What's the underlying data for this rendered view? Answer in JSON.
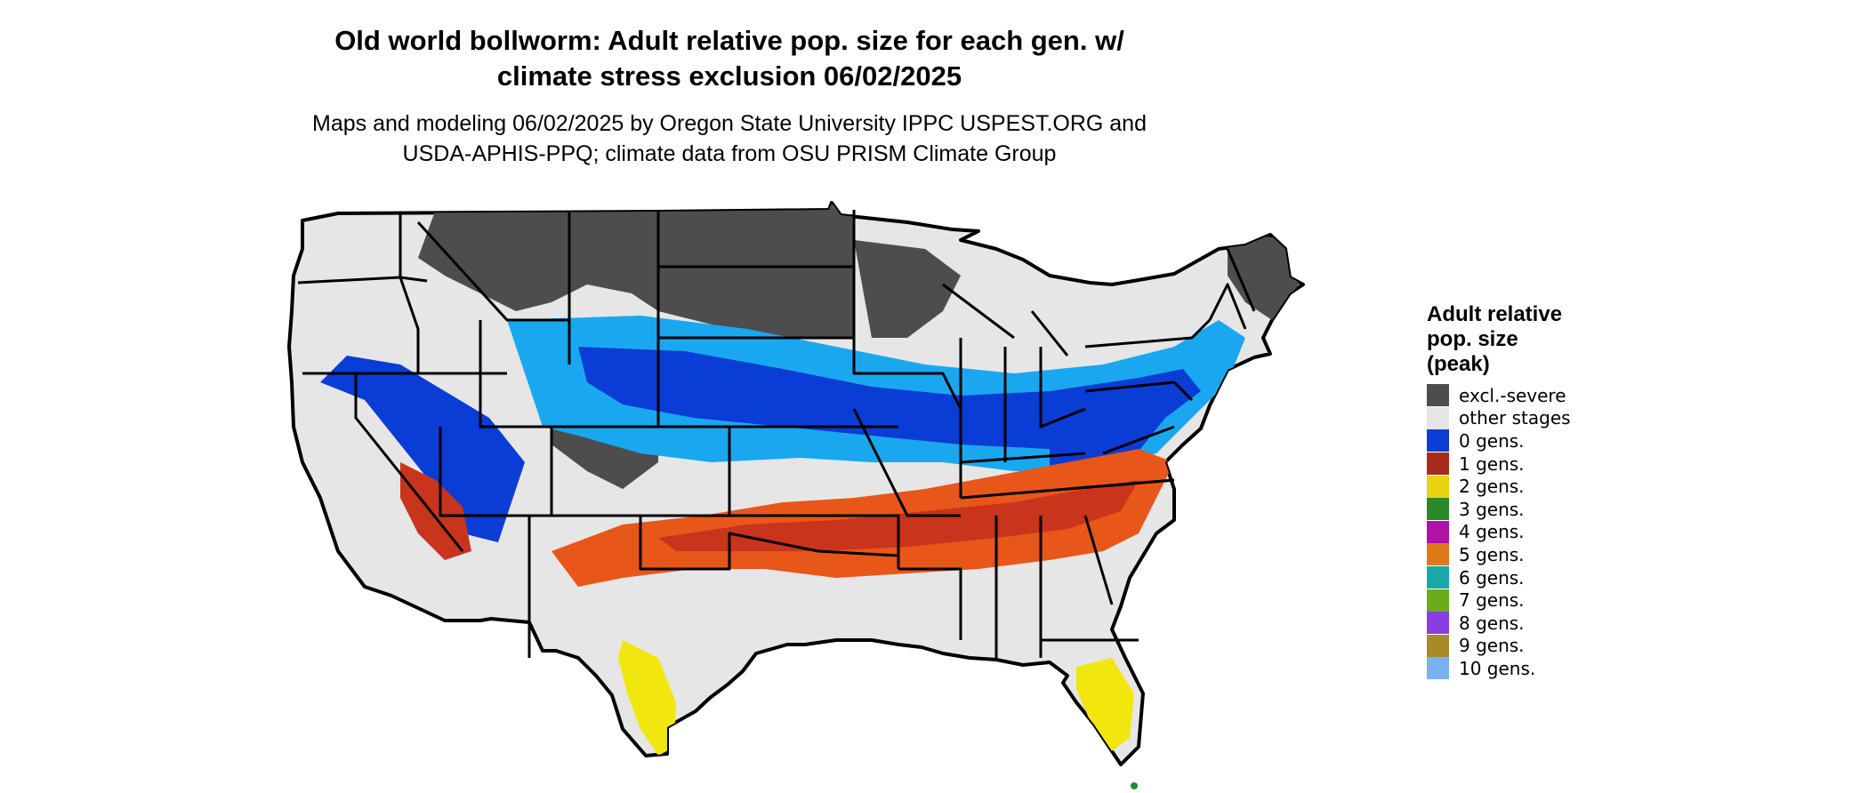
{
  "header": {
    "title_line1": "Old world bollworm: Adult relative pop. size for each gen. w/",
    "title_line2": "climate stress exclusion 06/02/2025",
    "subtitle_line1": "Maps and modeling 06/02/2025 by Oregon State University IPPC USPEST.ORG and",
    "subtitle_line2": "USDA-APHIS-PPQ; climate data from OSU PRISM Climate Group"
  },
  "legend": {
    "title_line1": "Adult relative",
    "title_line2": "pop. size",
    "title_line3": "(peak)",
    "items": [
      {
        "label": "excl.-severe",
        "color": "#4d4d4d"
      },
      {
        "label": "other stages",
        "color": "#e6e6e6"
      },
      {
        "label": "0 gens.",
        "color": "#0a3cd6"
      },
      {
        "label": "1 gens.",
        "color": "#a82a1a"
      },
      {
        "label": "2 gens.",
        "color": "#e8d311"
      },
      {
        "label": "3 gens.",
        "color": "#2a8a2a"
      },
      {
        "label": "4 gens.",
        "color": "#b012a8"
      },
      {
        "label": "5 gens.",
        "color": "#de7a1a"
      },
      {
        "label": "6 gens.",
        "color": "#18a8a8"
      },
      {
        "label": "7 gens.",
        "color": "#6aad1a"
      },
      {
        "label": "8 gens.",
        "color": "#8a3ee0"
      },
      {
        "label": "9 gens.",
        "color": "#a88a2a"
      },
      {
        "label": "10 gens.",
        "color": "#78b2f2"
      }
    ]
  },
  "map": {
    "colors": {
      "excluded": "#4d4d4d",
      "other": "#e6e6e6",
      "blue_dark": "#0a3cd6",
      "blue_light": "#19a8f0",
      "red": "#c8341c",
      "orange": "#e8561a",
      "yellow": "#f2e60f",
      "green": "#2a8a2a",
      "border": "#000000"
    }
  }
}
